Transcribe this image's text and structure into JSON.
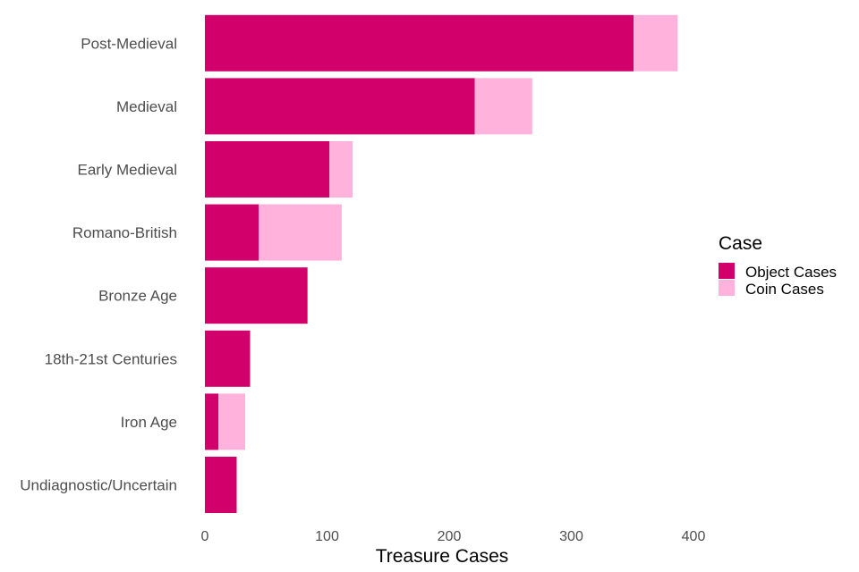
{
  "chart_data": {
    "type": "bar",
    "orientation": "horizontal",
    "stacked": true,
    "categories": [
      "Post-Medieval",
      "Medieval",
      "Early Medieval",
      "Romano-British",
      "Bronze Age",
      "18th-21st Centuries",
      "Iron Age",
      "Undiagnostic/Uncertain"
    ],
    "series": [
      {
        "name": "Object Cases",
        "color": "#d1006b",
        "values": [
          351,
          221,
          102,
          44,
          84,
          37,
          11,
          26
        ]
      },
      {
        "name": "Coin Cases",
        "color": "#ffb3dc",
        "values": [
          36,
          47,
          19,
          68,
          0,
          0,
          22,
          0
        ]
      }
    ],
    "xlabel": "Treasure Cases",
    "ylabel": "",
    "xlim": [
      0,
      400
    ],
    "xticks": [
      0,
      100,
      200,
      300,
      400
    ],
    "grid": false,
    "legend": {
      "title": "Case",
      "position": "right"
    }
  }
}
